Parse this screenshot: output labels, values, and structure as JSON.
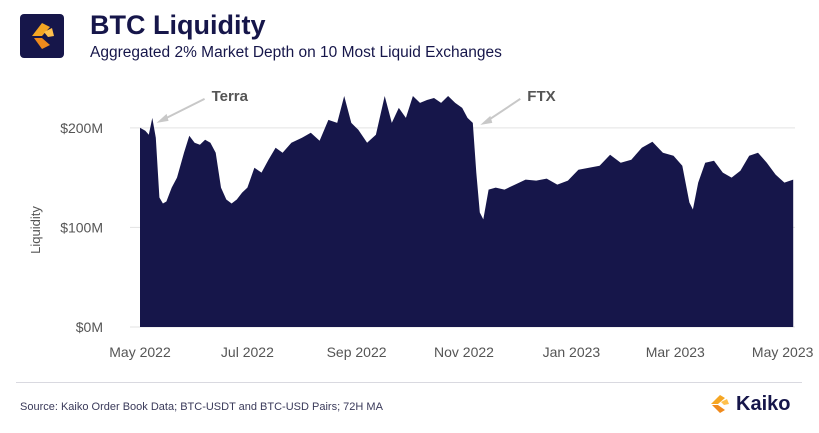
{
  "header": {
    "title": "BTC Liquidity",
    "subtitle": "Aggregated 2% Market Depth on 10 Most Liquid Exchanges"
  },
  "footer": {
    "source": "Source: Kaiko Order Book Data; BTC-USDT and BTC-USD Pairs; 72H MA",
    "brand": "Kaiko"
  },
  "colors": {
    "fill": "#16164a",
    "accent": "#f5a623",
    "annotation": "#c8c8c8"
  },
  "chart_data": {
    "type": "area",
    "title": "BTC Liquidity",
    "subtitle": "Aggregated 2% Market Depth on 10 Most Liquid Exchanges",
    "ylabel": "Liquidity",
    "xlabel": "",
    "yunit": "$M",
    "ylim": [
      0,
      240
    ],
    "yticks": [
      {
        "value": 0,
        "label": "$0M"
      },
      {
        "value": 100,
        "label": "$100M"
      },
      {
        "value": 200,
        "label": "$200M"
      }
    ],
    "xlim": [
      "2022-05-01",
      "2023-05-08"
    ],
    "xticks": [
      {
        "value": "2022-05-01",
        "label": "May 2022"
      },
      {
        "value": "2022-07-01",
        "label": "Jul 2022"
      },
      {
        "value": "2022-09-01",
        "label": "Sep 2022"
      },
      {
        "value": "2022-11-01",
        "label": "Nov 2022"
      },
      {
        "value": "2023-01-01",
        "label": "Jan 2023"
      },
      {
        "value": "2023-03-01",
        "label": "Mar 2023"
      },
      {
        "value": "2023-05-01",
        "label": "May 2023"
      }
    ],
    "grid": true,
    "legend": "none",
    "annotations": [
      {
        "text": "Terra",
        "date": "2022-05-07"
      },
      {
        "text": "FTX",
        "date": "2022-11-08"
      }
    ],
    "series": [
      {
        "x": [
          "2022-05-01",
          "2022-05-04",
          "2022-05-06",
          "2022-05-08",
          "2022-05-10",
          "2022-05-12",
          "2022-05-14",
          "2022-05-16",
          "2022-05-19",
          "2022-05-22",
          "2022-05-26",
          "2022-05-29",
          "2022-06-01",
          "2022-06-04",
          "2022-06-07",
          "2022-06-10",
          "2022-06-13",
          "2022-06-16",
          "2022-06-19",
          "2022-06-22",
          "2022-06-25",
          "2022-06-28",
          "2022-07-01",
          "2022-07-05",
          "2022-07-09",
          "2022-07-13",
          "2022-07-17",
          "2022-07-21",
          "2022-07-26",
          "2022-08-01",
          "2022-08-06",
          "2022-08-11",
          "2022-08-16",
          "2022-08-21",
          "2022-08-25",
          "2022-08-29",
          "2022-09-02",
          "2022-09-07",
          "2022-09-12",
          "2022-09-17",
          "2022-09-21",
          "2022-09-25",
          "2022-09-29",
          "2022-10-03",
          "2022-10-07",
          "2022-10-11",
          "2022-10-15",
          "2022-10-19",
          "2022-10-23",
          "2022-10-27",
          "2022-10-31",
          "2022-11-03",
          "2022-11-06",
          "2022-11-08",
          "2022-11-10",
          "2022-11-12",
          "2022-11-15",
          "2022-11-19",
          "2022-11-24",
          "2022-11-30",
          "2022-12-06",
          "2022-12-12",
          "2022-12-18",
          "2022-12-24",
          "2022-12-30",
          "2023-01-05",
          "2023-01-11",
          "2023-01-17",
          "2023-01-23",
          "2023-01-29",
          "2023-02-04",
          "2023-02-10",
          "2023-02-16",
          "2023-02-22",
          "2023-02-28",
          "2023-03-05",
          "2023-03-09",
          "2023-03-11",
          "2023-03-14",
          "2023-03-18",
          "2023-03-23",
          "2023-03-28",
          "2023-04-02",
          "2023-04-07",
          "2023-04-12",
          "2023-04-17",
          "2023-04-22",
          "2023-04-27",
          "2023-05-02",
          "2023-05-07"
        ],
        "values": [
          200,
          197,
          193,
          210,
          190,
          130,
          124,
          126,
          140,
          150,
          175,
          192,
          185,
          183,
          188,
          185,
          175,
          140,
          128,
          124,
          128,
          135,
          140,
          160,
          155,
          168,
          180,
          175,
          185,
          190,
          195,
          187,
          208,
          205,
          232,
          205,
          198,
          185,
          193,
          232,
          205,
          220,
          210,
          232,
          225,
          228,
          230,
          225,
          232,
          225,
          220,
          210,
          205,
          155,
          115,
          108,
          138,
          140,
          138,
          143,
          148,
          147,
          149,
          143,
          147,
          158,
          160,
          162,
          173,
          165,
          168,
          180,
          186,
          175,
          172,
          162,
          125,
          118,
          145,
          165,
          167,
          155,
          150,
          157,
          172,
          175,
          165,
          153,
          145,
          148
        ]
      }
    ]
  }
}
